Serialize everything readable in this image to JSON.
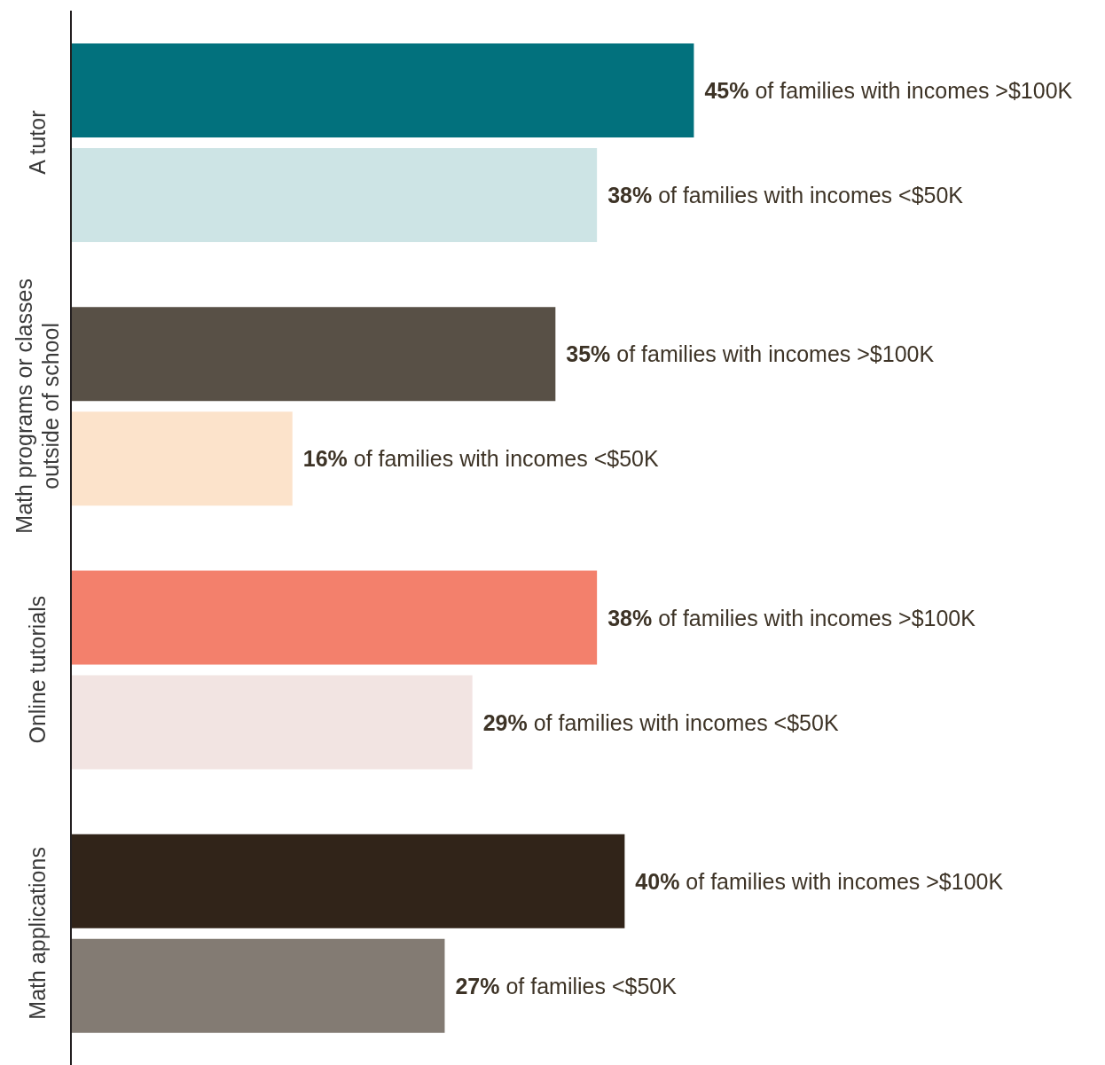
{
  "chart_data": {
    "type": "bar",
    "orientation": "horizontal",
    "categories": [
      "A tutor",
      "Math programs or classes outside of school",
      "Online tutorials",
      "Math applications"
    ],
    "data_labels": false,
    "tick_labels": "y",
    "series": [
      {
        "colors": [
          "#02717d",
          "#585046",
          "#f3806c",
          "#312419"
        ],
        "values": [
          45,
          35,
          38,
          40
        ],
        "value_labels": [
          "45% of families with incomes >$100K",
          "35% of families with incomes >$100K",
          "38% of families with incomes >$100K",
          "40% of families with incomes >$100K"
        ]
      },
      {
        "colors": [
          "#cde4e5",
          "#fce3cb",
          "#f2e4e2",
          "#837b73"
        ],
        "values": [
          38,
          16,
          29,
          27
        ],
        "value_labels": [
          "38% of families with incomes <$50K",
          "16% of families with incomes <$50K",
          "29% of families with incomes <$50K",
          "27% of families <$50K"
        ]
      }
    ]
  }
}
